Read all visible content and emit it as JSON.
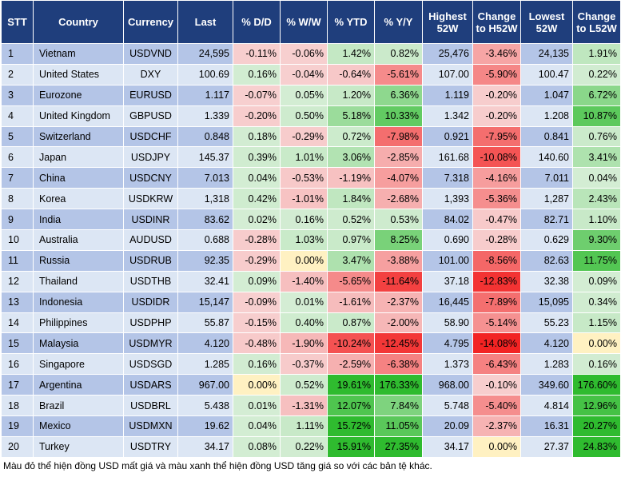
{
  "headers": [
    "STT",
    "Country",
    "Currency",
    "Last",
    "% D/D",
    "% W/W",
    "% YTD",
    "% Y/Y",
    "Highest 52W",
    "Change to H52W",
    "Lowest 52W",
    "Change to L52W"
  ],
  "rows": [
    {
      "stt": "1",
      "country": "Vietnam",
      "currency": "USDVND",
      "last": "24,595",
      "dd": "-0.11%",
      "ww": "-0.06%",
      "ytd": "1.42%",
      "yy": "0.82%",
      "h52": "25,476",
      "ch52": "-3.46%",
      "l52": "24,135",
      "cl52": "1.91%"
    },
    {
      "stt": "2",
      "country": "United States",
      "currency": "DXY",
      "last": "100.69",
      "dd": "0.16%",
      "ww": "-0.04%",
      "ytd": "-0.64%",
      "yy": "-5.61%",
      "h52": "107.00",
      "ch52": "-5.90%",
      "l52": "100.47",
      "cl52": "0.22%"
    },
    {
      "stt": "3",
      "country": "Eurozone",
      "currency": "EURUSD",
      "last": "1.117",
      "dd": "-0.07%",
      "ww": "0.05%",
      "ytd": "1.20%",
      "yy": "6.36%",
      "h52": "1.119",
      "ch52": "-0.20%",
      "l52": "1.047",
      "cl52": "6.72%"
    },
    {
      "stt": "4",
      "country": "United Kingdom",
      "currency": "GBPUSD",
      "last": "1.339",
      "dd": "-0.20%",
      "ww": "0.50%",
      "ytd": "5.18%",
      "yy": "10.33%",
      "h52": "1.342",
      "ch52": "-0.20%",
      "l52": "1.208",
      "cl52": "10.87%"
    },
    {
      "stt": "5",
      "country": "Switzerland",
      "currency": "USDCHF",
      "last": "0.848",
      "dd": "0.18%",
      "ww": "-0.29%",
      "ytd": "0.72%",
      "yy": "-7.98%",
      "h52": "0.921",
      "ch52": "-7.95%",
      "l52": "0.841",
      "cl52": "0.76%"
    },
    {
      "stt": "6",
      "country": "Japan",
      "currency": "USDJPY",
      "last": "145.37",
      "dd": "0.39%",
      "ww": "1.01%",
      "ytd": "3.06%",
      "yy": "-2.85%",
      "h52": "161.68",
      "ch52": "-10.08%",
      "l52": "140.60",
      "cl52": "3.41%"
    },
    {
      "stt": "7",
      "country": "China",
      "currency": "USDCNY",
      "last": "7.013",
      "dd": "0.04%",
      "ww": "-0.53%",
      "ytd": "-1.19%",
      "yy": "-4.07%",
      "h52": "7.318",
      "ch52": "-4.16%",
      "l52": "7.011",
      "cl52": "0.04%"
    },
    {
      "stt": "8",
      "country": "Korea",
      "currency": "USDKRW",
      "last": "1,318",
      "dd": "0.42%",
      "ww": "-1.01%",
      "ytd": "1.84%",
      "yy": "-2.68%",
      "h52": "1,393",
      "ch52": "-5.36%",
      "l52": "1,287",
      "cl52": "2.43%"
    },
    {
      "stt": "9",
      "country": "India",
      "currency": "USDINR",
      "last": "83.62",
      "dd": "0.02%",
      "ww": "0.16%",
      "ytd": "0.52%",
      "yy": "0.53%",
      "h52": "84.02",
      "ch52": "-0.47%",
      "l52": "82.71",
      "cl52": "1.10%"
    },
    {
      "stt": "10",
      "country": "Australia",
      "currency": "AUDUSD",
      "last": "0.688",
      "dd": "-0.28%",
      "ww": "1.03%",
      "ytd": "0.97%",
      "yy": "8.25%",
      "h52": "0.690",
      "ch52": "-0.28%",
      "l52": "0.629",
      "cl52": "9.30%"
    },
    {
      "stt": "11",
      "country": "Russia",
      "currency": "USDRUB",
      "last": "92.35",
      "dd": "-0.29%",
      "ww": "0.00%",
      "ytd": "3.47%",
      "yy": "-3.88%",
      "h52": "101.00",
      "ch52": "-8.56%",
      "l52": "82.63",
      "cl52": "11.75%"
    },
    {
      "stt": "12",
      "country": "Thailand",
      "currency": "USDTHB",
      "last": "32.41",
      "dd": "0.09%",
      "ww": "-1.40%",
      "ytd": "-5.65%",
      "yy": "-11.64%",
      "h52": "37.18",
      "ch52": "-12.83%",
      "l52": "32.38",
      "cl52": "0.09%"
    },
    {
      "stt": "13",
      "country": "Indonesia",
      "currency": "USDIDR",
      "last": "15,147",
      "dd": "-0.09%",
      "ww": "0.01%",
      "ytd": "-1.61%",
      "yy": "-2.37%",
      "h52": "16,445",
      "ch52": "-7.89%",
      "l52": "15,095",
      "cl52": "0.34%"
    },
    {
      "stt": "14",
      "country": "Philippines",
      "currency": "USDPHP",
      "last": "55.87",
      "dd": "-0.15%",
      "ww": "0.40%",
      "ytd": "0.87%",
      "yy": "-2.00%",
      "h52": "58.90",
      "ch52": "-5.14%",
      "l52": "55.23",
      "cl52": "1.15%"
    },
    {
      "stt": "15",
      "country": "Malaysia",
      "currency": "USDMYR",
      "last": "4.120",
      "dd": "-0.48%",
      "ww": "-1.90%",
      "ytd": "-10.24%",
      "yy": "-12.45%",
      "h52": "4.795",
      "ch52": "-14.08%",
      "l52": "4.120",
      "cl52": "0.00%"
    },
    {
      "stt": "16",
      "country": "Singapore",
      "currency": "USDSGD",
      "last": "1.285",
      "dd": "0.16%",
      "ww": "-0.37%",
      "ytd": "-2.59%",
      "yy": "-6.38%",
      "h52": "1.373",
      "ch52": "-6.43%",
      "l52": "1.283",
      "cl52": "0.16%"
    },
    {
      "stt": "17",
      "country": "Argentina",
      "currency": "USDARS",
      "last": "967.00",
      "dd": "0.00%",
      "ww": "0.52%",
      "ytd": "19.61%",
      "yy": "176.33%",
      "h52": "968.00",
      "ch52": "-0.10%",
      "l52": "349.60",
      "cl52": "176.60%"
    },
    {
      "stt": "18",
      "country": "Brazil",
      "currency": "USDBRL",
      "last": "5.438",
      "dd": "0.01%",
      "ww": "-1.31%",
      "ytd": "12.07%",
      "yy": "7.84%",
      "h52": "5.748",
      "ch52": "-5.40%",
      "l52": "4.814",
      "cl52": "12.96%"
    },
    {
      "stt": "19",
      "country": "Mexico",
      "currency": "USDMXN",
      "last": "19.62",
      "dd": "0.04%",
      "ww": "1.11%",
      "ytd": "15.72%",
      "yy": "11.05%",
      "h52": "20.09",
      "ch52": "-2.37%",
      "l52": "16.31",
      "cl52": "20.27%"
    },
    {
      "stt": "20",
      "country": "Turkey",
      "currency": "USDTRY",
      "last": "34.17",
      "dd": "0.08%",
      "ww": "0.22%",
      "ytd": "15.91%",
      "yy": "27.35%",
      "h52": "34.17",
      "ch52": "0.00%",
      "l52": "27.37",
      "cl52": "24.83%"
    }
  ],
  "colors": {
    "header_bg": "#1f3e7c",
    "row_odd": "#b4c5e7",
    "row_even": "#dce6f4",
    "positive": "#2fbb2f",
    "negative": "#f21818",
    "zero": "#fff1c2"
  },
  "footnote": "Màu đỏ thể hiện đồng USD mất giá và màu xanh thể hiện đồng USD tăng giá so với các bản tệ khác."
}
